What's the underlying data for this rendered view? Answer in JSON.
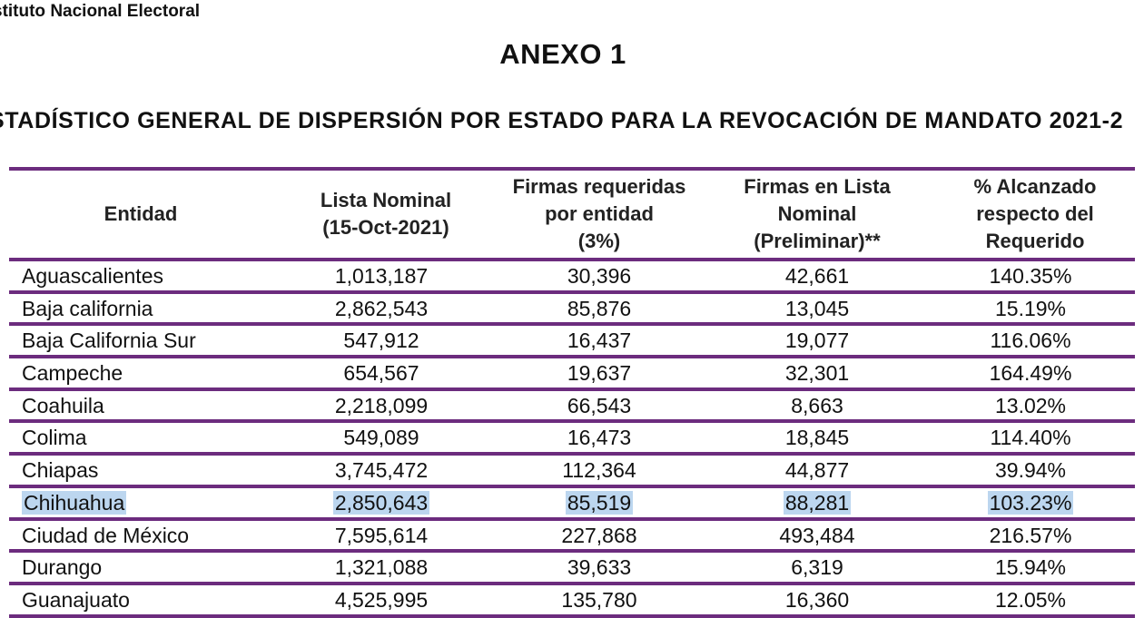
{
  "header": {
    "org": "stituto Nacional Electoral",
    "annex": "ANEXO 1",
    "subtitle": "STADÍSTICO GENERAL DE DISPERSIÓN POR ESTADO PARA LA REVOCACIÓN DE MANDATO 2021-2"
  },
  "table": {
    "columns": [
      "Entidad",
      "Lista Nominal\n(15-Oct-2021)",
      "Firmas requeridas\npor entidad\n(3%)",
      "Firmas en Lista\nNominal\n(Preliminar)**",
      "% Alcanzado\nrespecto del\nRequerido"
    ],
    "rows": [
      {
        "entidad": "Aguascalientes",
        "lista": "1,013,187",
        "requeridas": "30,396",
        "firmas": "42,661",
        "pct": "140.35%",
        "highlight": false
      },
      {
        "entidad": "Baja california",
        "lista": "2,862,543",
        "requeridas": "85,876",
        "firmas": "13,045",
        "pct": "15.19%",
        "highlight": false
      },
      {
        "entidad": "Baja California Sur",
        "lista": "547,912",
        "requeridas": "16,437",
        "firmas": "19,077",
        "pct": "116.06%",
        "highlight": false
      },
      {
        "entidad": "Campeche",
        "lista": "654,567",
        "requeridas": "19,637",
        "firmas": "32,301",
        "pct": "164.49%",
        "highlight": false
      },
      {
        "entidad": "Coahuila",
        "lista": "2,218,099",
        "requeridas": "66,543",
        "firmas": "8,663",
        "pct": "13.02%",
        "highlight": false
      },
      {
        "entidad": "Colima",
        "lista": "549,089",
        "requeridas": "16,473",
        "firmas": "18,845",
        "pct": "114.40%",
        "highlight": false
      },
      {
        "entidad": "Chiapas",
        "lista": "3,745,472",
        "requeridas": "112,364",
        "firmas": "44,877",
        "pct": "39.94%",
        "highlight": false
      },
      {
        "entidad": "Chihuahua",
        "lista": "2,850,643",
        "requeridas": "85,519",
        "firmas": "88,281",
        "pct": "103.23%",
        "highlight": true
      },
      {
        "entidad": "Ciudad de México",
        "lista": "7,595,614",
        "requeridas": "227,868",
        "firmas": "493,484",
        "pct": "216.57%",
        "highlight": false
      },
      {
        "entidad": "Durango",
        "lista": "1,321,088",
        "requeridas": "39,633",
        "firmas": "6,319",
        "pct": "15.94%",
        "highlight": false
      },
      {
        "entidad": "Guanajuato",
        "lista": "4,525,995",
        "requeridas": "135,780",
        "firmas": "16,360",
        "pct": "12.05%",
        "highlight": false
      }
    ]
  },
  "colors": {
    "border": "#6c2c7e",
    "highlight": "#bcd6ef"
  }
}
